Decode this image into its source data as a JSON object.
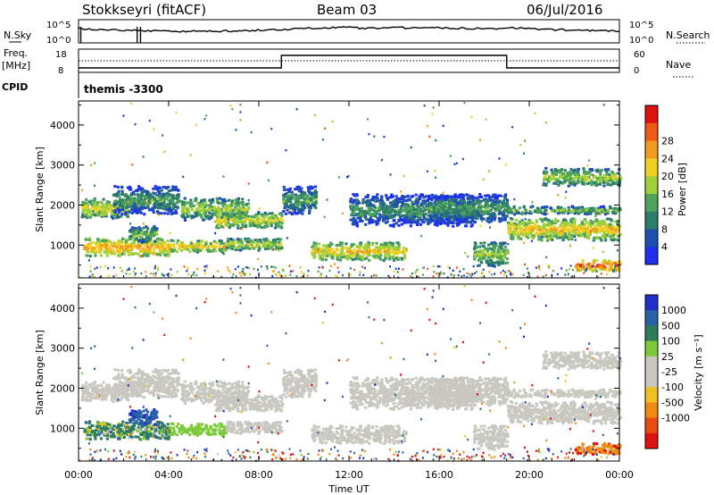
{
  "header": {
    "site": "Stokkseyri (fitACF)",
    "beam": "Beam 03",
    "date": "06/Jul/2016"
  },
  "noise_panel": {
    "left_label": "N.Sky",
    "right_label": "N.Search",
    "left_ticks": [
      "10^5",
      "10^0"
    ],
    "right_ticks": [
      "10^5",
      "10^0"
    ]
  },
  "freq_panel": {
    "left_label_1": "Freq.",
    "left_label_2": "[MHz]",
    "right_label": "Nave",
    "left_ticks": [
      "18",
      "8"
    ],
    "right_ticks": [
      "60",
      "0"
    ]
  },
  "cpid": {
    "label": "CPID",
    "value": "themis -3300"
  },
  "power_panel": {
    "ylabel": "Slant Range [km]",
    "yticks": [
      "1000",
      "2000",
      "3000",
      "4000"
    ],
    "colorbar_label": "Power [dB]",
    "colorbar_ticks": [
      "4",
      "8",
      "12",
      "16",
      "20",
      "24",
      "28"
    ],
    "colors": [
      "#1f2ff0",
      "#1f4fb0",
      "#2e7d68",
      "#4fa35c",
      "#9fd038",
      "#f0d020",
      "#f09a20",
      "#f05a15",
      "#e01010"
    ]
  },
  "velocity_panel": {
    "ylabel": "Slant Range [km]",
    "yticks": [
      "1000",
      "2000",
      "3000",
      "4000"
    ],
    "colorbar_label": "Velocity [m s⁻¹]",
    "colorbar_ticks": [
      "1000",
      "500",
      "100",
      "25",
      "-25",
      "-100",
      "-500",
      "-1000"
    ],
    "colors": [
      "#1f2fc8",
      "#2a62a8",
      "#2e7d5a",
      "#7ecb3a",
      "#c8c8c0",
      "#c8c8c0",
      "#f0c020",
      "#f08a10",
      "#e84a10",
      "#e01010"
    ]
  },
  "x_axis": {
    "xlabel": "Time UT",
    "ticks": [
      "00:00",
      "04:00",
      "08:00",
      "12:00",
      "16:00",
      "20:00",
      "00:00"
    ]
  },
  "chart_data": {
    "type": "heatmap",
    "title": "Stokkseyri (fitACF)  Beam 03  06/Jul/2016",
    "xlabel": "Time UT",
    "ylabel": "Slant Range [km]",
    "xlim": [
      0,
      24
    ],
    "ylim": [
      180,
      4600
    ],
    "x_ticks": [
      "00:00",
      "04:00",
      "08:00",
      "12:00",
      "16:00",
      "20:00",
      "00:00"
    ],
    "y_ticks": [
      1000,
      2000,
      3000,
      4000
    ],
    "frequency_steps": [
      {
        "from": 0,
        "to": 9,
        "value": "low"
      },
      {
        "from": 9,
        "to": 19,
        "value": "high"
      },
      {
        "from": 19,
        "to": 24,
        "value": "low"
      }
    ],
    "power_colorbar": {
      "label": "Power [dB]",
      "ticks": [
        4,
        8,
        12,
        16,
        20,
        24,
        28
      ]
    },
    "velocity_colorbar": {
      "label": "Velocity [m s⁻¹]",
      "ticks": [
        1000,
        500,
        100,
        25,
        -25,
        -100,
        -500,
        -1000
      ]
    },
    "echo_regions": [
      {
        "t0": 0.1,
        "t1": 2.2,
        "r0": 1700,
        "r1": 2200,
        "power": 14,
        "velocity": 5
      },
      {
        "t0": 0.2,
        "t1": 4.0,
        "r0": 750,
        "r1": 1200,
        "power": 18,
        "velocity": 150
      },
      {
        "t0": 1.5,
        "t1": 4.4,
        "r0": 1800,
        "r1": 2500,
        "power": 8,
        "velocity": 5
      },
      {
        "t0": 2.2,
        "t1": 3.5,
        "r0": 1100,
        "r1": 1500,
        "power": 10,
        "velocity": 600
      },
      {
        "t0": 4.0,
        "t1": 6.5,
        "r0": 850,
        "r1": 1150,
        "power": 16,
        "velocity": 60
      },
      {
        "t0": 4.5,
        "t1": 7.5,
        "r0": 1650,
        "r1": 2200,
        "power": 12,
        "velocity": 5
      },
      {
        "t0": 6.0,
        "t1": 9.0,
        "r0": 1450,
        "r1": 1850,
        "power": 14,
        "velocity": 0
      },
      {
        "t0": 6.5,
        "t1": 9.0,
        "r0": 900,
        "r1": 1200,
        "power": 13,
        "velocity": 0
      },
      {
        "t0": 9.0,
        "t1": 10.5,
        "r0": 1800,
        "r1": 2500,
        "power": 8,
        "velocity": 0
      },
      {
        "t0": 10.3,
        "t1": 14.5,
        "r0": 650,
        "r1": 1100,
        "power": 16,
        "velocity": 0
      },
      {
        "t0": 12.0,
        "t1": 17.5,
        "r0": 1500,
        "r1": 2300,
        "power": 7,
        "velocity": 0
      },
      {
        "t0": 15.5,
        "t1": 19.0,
        "r0": 1600,
        "r1": 2300,
        "power": 8,
        "velocity": 0
      },
      {
        "t0": 17.5,
        "t1": 19.0,
        "r0": 500,
        "r1": 1100,
        "power": 12,
        "velocity": 0
      },
      {
        "t0": 19.0,
        "t1": 24.0,
        "r0": 1150,
        "r1": 1700,
        "power": 16,
        "velocity": 0
      },
      {
        "t0": 19.0,
        "t1": 24.0,
        "r0": 1800,
        "r1": 2000,
        "power": 10,
        "velocity": 0
      },
      {
        "t0": 20.5,
        "t1": 24.0,
        "r0": 2500,
        "r1": 2950,
        "power": 12,
        "velocity": 0
      },
      {
        "t0": 22.0,
        "t1": 24.0,
        "r0": 380,
        "r1": 650,
        "power": 22,
        "velocity": -400
      }
    ]
  }
}
